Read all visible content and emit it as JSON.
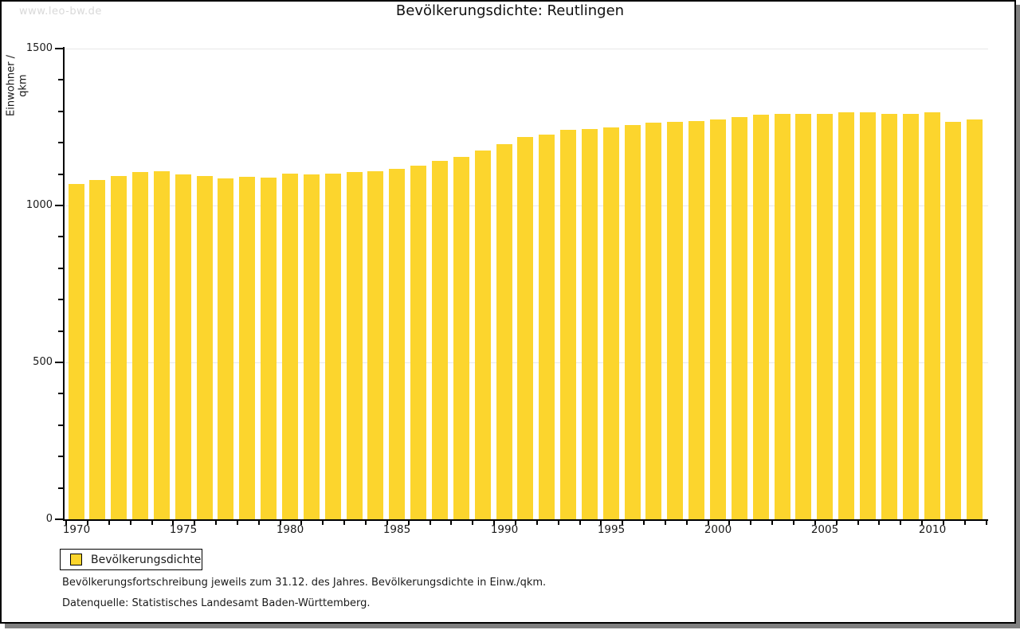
{
  "watermark": "www.leo-bw.de",
  "title": "Bevölkerungsdichte: Reutlingen",
  "legend": {
    "label": "Bevölkerungsdichte"
  },
  "footnotes": {
    "line1": "Bevölkerungsfortschreibung jeweils zum 31.12. des Jahres. Bevölkerungsdichte in Einw./qkm.",
    "line2": "Datenquelle: Statistisches Landesamt Baden-Württemberg."
  },
  "colors": {
    "bar": "#fcd52d",
    "grid": "#e8e8e8",
    "axis": "#000000",
    "text": "#1a1a1a",
    "watermark": "#d9d9d9",
    "shadow": "#808080"
  },
  "chart_data": {
    "type": "bar",
    "title": "Bevölkerungsdichte: Reutlingen",
    "xlabel": "",
    "ylabel": "Einwohner / qkm",
    "ylim": [
      0,
      1500
    ],
    "yticks_major": [
      0,
      500,
      1000,
      1500
    ],
    "ytick_minor_step": 100,
    "gridline_values": [
      500,
      1000,
      1500
    ],
    "xticks_labeled": [
      1970,
      1975,
      1980,
      1985,
      1990,
      1995,
      2000,
      2005,
      2010
    ],
    "grid": "horizontal",
    "legend_position": "bottom-left",
    "legend_entries": [
      "Bevölkerungsdichte"
    ],
    "categories": [
      1970,
      1971,
      1972,
      1973,
      1974,
      1975,
      1976,
      1977,
      1978,
      1979,
      1980,
      1981,
      1982,
      1983,
      1984,
      1985,
      1986,
      1987,
      1988,
      1989,
      1990,
      1991,
      1992,
      1993,
      1994,
      1995,
      1996,
      1997,
      1998,
      1999,
      2000,
      2001,
      2002,
      2003,
      2004,
      2005,
      2006,
      2007,
      2008,
      2009,
      2010,
      2011,
      2012
    ],
    "values": [
      1069,
      1082,
      1094,
      1106,
      1110,
      1100,
      1094,
      1086,
      1091,
      1090,
      1101,
      1099,
      1102,
      1106,
      1110,
      1117,
      1128,
      1143,
      1155,
      1176,
      1195,
      1218,
      1227,
      1240,
      1243,
      1249,
      1256,
      1265,
      1267,
      1270,
      1274,
      1281,
      1290,
      1293,
      1292,
      1293,
      1296,
      1296,
      1291,
      1292,
      1296,
      1267,
      1275
    ]
  }
}
